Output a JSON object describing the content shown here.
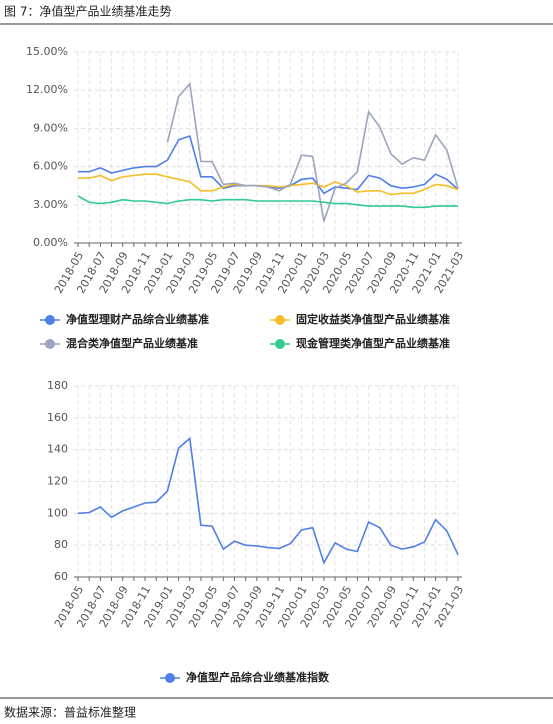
{
  "header": {
    "title": "图 7：净值型产品业绩基准走势",
    "source": "数据来源：普益标准整理"
  },
  "chart_data": [
    {
      "type": "line",
      "categories": [
        "2018-05",
        null,
        "2018-07",
        null,
        "2018-09",
        null,
        "2018-11",
        null,
        "2019-01",
        null,
        "2019-03",
        null,
        "2019-05",
        null,
        "2019-07",
        null,
        "2019-09",
        null,
        "2019-11",
        null,
        "2020-01",
        null,
        "2020-03",
        null,
        "2020-05",
        null,
        "2020-07",
        null,
        "2020-09",
        null,
        "2020-11",
        null,
        "2021-01",
        null,
        "2021-03"
      ],
      "series": [
        {
          "name": "净值型理财产品综合业绩基准",
          "color": "#4f7fe8",
          "values": [
            5.6,
            5.6,
            5.9,
            5.5,
            5.7,
            5.9,
            6.0,
            6.0,
            6.5,
            8.1,
            8.4,
            5.2,
            5.2,
            4.3,
            4.5,
            4.5,
            4.5,
            4.4,
            4.3,
            4.5,
            5.0,
            5.1,
            3.9,
            4.4,
            4.3,
            4.2,
            5.3,
            5.1,
            4.5,
            4.3,
            4.4,
            4.6,
            5.4,
            5.0,
            4.2
          ]
        },
        {
          "name": "固定收益类净值型产品业绩基准",
          "color": "#f5bd27",
          "values": [
            5.1,
            5.1,
            5.3,
            4.9,
            5.2,
            5.3,
            5.4,
            5.4,
            5.2,
            5.0,
            4.8,
            4.1,
            4.1,
            4.4,
            4.6,
            4.5,
            4.5,
            4.5,
            4.4,
            4.5,
            4.6,
            4.7,
            4.4,
            4.8,
            4.5,
            4.0,
            4.1,
            4.1,
            3.8,
            3.9,
            3.9,
            4.2,
            4.6,
            4.5,
            4.2
          ]
        },
        {
          "name": "混合类净值型产品业绩基准",
          "color": "#9aa5bd",
          "values": [
            null,
            null,
            null,
            null,
            null,
            null,
            null,
            null,
            7.9,
            11.5,
            12.5,
            6.4,
            6.4,
            4.6,
            4.7,
            4.5,
            4.5,
            4.4,
            4.1,
            4.6,
            6.9,
            6.8,
            1.7,
            4.3,
            4.7,
            5.6,
            10.3,
            9.1,
            7.0,
            6.2,
            6.7,
            6.5,
            8.5,
            7.3,
            4.3
          ]
        },
        {
          "name": "现金管理类净值型产品业绩基准",
          "color": "#2fcb8f",
          "values": [
            3.7,
            3.2,
            3.1,
            3.2,
            3.4,
            3.3,
            3.3,
            3.2,
            3.1,
            3.3,
            3.4,
            3.4,
            3.3,
            3.4,
            3.4,
            3.4,
            3.3,
            3.3,
            3.3,
            3.3,
            3.3,
            3.3,
            3.2,
            3.1,
            3.1,
            3.0,
            2.9,
            2.9,
            2.9,
            2.9,
            2.8,
            2.8,
            2.9,
            2.9,
            2.9
          ]
        }
      ],
      "ylim": [
        0,
        15
      ],
      "yticks": [
        {
          "value": 0,
          "label": "0.00%"
        },
        {
          "value": 3,
          "label": "3.00%"
        },
        {
          "value": 6,
          "label": "6.00%"
        },
        {
          "value": 9,
          "label": "9.00%"
        },
        {
          "value": 12,
          "label": "12.00%"
        },
        {
          "value": 15,
          "label": "15.00%"
        }
      ],
      "grid": true,
      "legend": "bottom"
    },
    {
      "type": "line",
      "categories": [
        "2018-05",
        null,
        "2018-07",
        null,
        "2018-09",
        null,
        "2018-11",
        null,
        "2019-01",
        null,
        "2019-03",
        null,
        "2019-05",
        null,
        "2019-07",
        null,
        "2019-09",
        null,
        "2019-11",
        null,
        "2020-01",
        null,
        "2020-03",
        null,
        "2020-05",
        null,
        "2020-07",
        null,
        "2020-09",
        null,
        "2020-11",
        null,
        "2021-01",
        null,
        "2021-03"
      ],
      "series": [
        {
          "name": "净值型产品综合业绩基准指数",
          "color": "#4f7fe8",
          "values": [
            100,
            100.5,
            104,
            97.5,
            101.5,
            104,
            106.5,
            107,
            114,
            141,
            147,
            92.5,
            92,
            77.5,
            82.5,
            80,
            79.5,
            78.5,
            78,
            81,
            89.5,
            91,
            69,
            81.5,
            77.5,
            76,
            94.5,
            91,
            80,
            77.5,
            79,
            82,
            96,
            89,
            74
          ]
        }
      ],
      "ylim": [
        60,
        180
      ],
      "yticks": [
        60,
        80,
        100,
        120,
        140,
        160,
        180
      ],
      "grid": true,
      "legend": "bottom"
    }
  ]
}
